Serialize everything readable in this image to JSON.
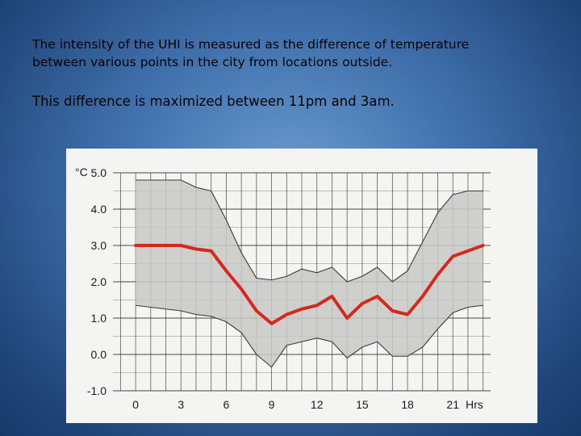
{
  "slide": {
    "line1": "The intensity of the UHI is measured as the difference  of temperature",
    "line2": "between various points in the city from locations outside.",
    "line3": "This difference is maximized between 11pm and 3am."
  },
  "colors": {
    "mean_line": "#d42a1e",
    "band_fill": "#c8c8c8",
    "band_edge": "#3a3a3a",
    "grid": "#2a2a2a"
  },
  "chart_data": {
    "type": "area",
    "title": "",
    "xlabel": "Hrs",
    "ylabel": "°C",
    "xlim": [
      -1.5,
      23.5
    ],
    "ylim": [
      -1.0,
      5.0
    ],
    "xticks": [
      0,
      3,
      6,
      9,
      12,
      15,
      18,
      21
    ],
    "xtick_labels": [
      "0",
      "3",
      "6",
      "9",
      "12",
      "15",
      "18",
      "21"
    ],
    "yticks": [
      5.0,
      4.0,
      3.0,
      2.0,
      1.0,
      0.0,
      -1.0
    ],
    "ytick_labels": [
      "5.0",
      "4.0",
      "3.0",
      "2.0",
      "1.0",
      "0.0",
      "-1.0"
    ],
    "grid": true,
    "x": [
      0,
      1,
      2,
      3,
      4,
      5,
      6,
      7,
      8,
      9,
      10,
      11,
      12,
      13,
      14,
      15,
      16,
      17,
      18,
      19,
      20,
      21,
      22,
      23
    ],
    "series": [
      {
        "values": [
          3.0,
          3.0,
          3.0,
          3.0,
          2.9,
          2.85,
          2.3,
          1.8,
          1.2,
          0.85,
          1.1,
          1.25,
          1.35,
          1.6,
          1.0,
          1.4,
          1.6,
          1.2,
          1.1,
          1.6,
          2.2,
          2.7,
          2.85,
          3.0
        ]
      },
      {
        "values": [
          4.8,
          4.8,
          4.8,
          4.8,
          4.6,
          4.5,
          3.7,
          2.8,
          2.1,
          2.05,
          2.15,
          2.35,
          2.25,
          2.4,
          2.0,
          2.15,
          2.4,
          2.0,
          2.3,
          3.1,
          3.9,
          4.4,
          4.5,
          4.5
        ]
      },
      {
        "values": [
          1.35,
          1.3,
          1.25,
          1.2,
          1.1,
          1.05,
          0.9,
          0.6,
          0.0,
          -0.35,
          0.25,
          0.35,
          0.45,
          0.35,
          -0.1,
          0.2,
          0.35,
          -0.05,
          -0.05,
          0.2,
          0.7,
          1.15,
          1.3,
          1.35
        ]
      }
    ]
  }
}
